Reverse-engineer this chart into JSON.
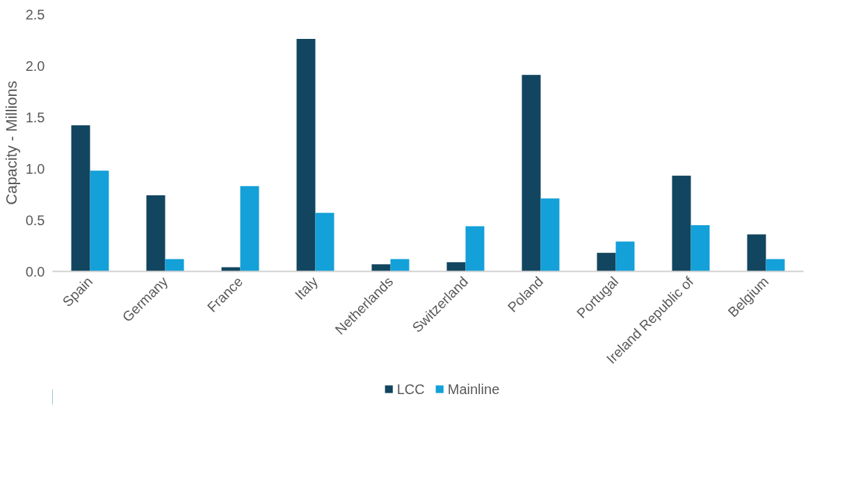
{
  "chart_data": {
    "type": "bar",
    "ylabel": "Capacity - Millions",
    "categories": [
      "Spain",
      "Germany",
      "France",
      "Italy",
      "Netherlands",
      "Switzerland",
      "Poland",
      "Portugal",
      "Ireland Republic of",
      "Belgium"
    ],
    "series": [
      {
        "name": "LCC",
        "color": "#12455f",
        "values": [
          1.42,
          0.74,
          0.04,
          2.26,
          0.07,
          0.09,
          1.91,
          0.18,
          0.93,
          0.36
        ]
      },
      {
        "name": "Mainline",
        "color": "#14a0d8",
        "values": [
          0.98,
          0.12,
          0.83,
          0.57,
          0.12,
          0.44,
          0.71,
          0.29,
          0.45,
          0.12
        ]
      }
    ],
    "ylim": [
      0,
      2.5
    ],
    "yticks": [
      {
        "value": 0,
        "label": "0.0"
      },
      {
        "value": 0.5,
        "label": "0.5"
      },
      {
        "value": 1,
        "label": "1.0"
      },
      {
        "value": 1.5,
        "label": "1.5"
      },
      {
        "value": 2,
        "label": "2.0"
      },
      {
        "value": 2.5,
        "label": "2.5"
      }
    ],
    "grid": false,
    "legend": "bottom"
  }
}
